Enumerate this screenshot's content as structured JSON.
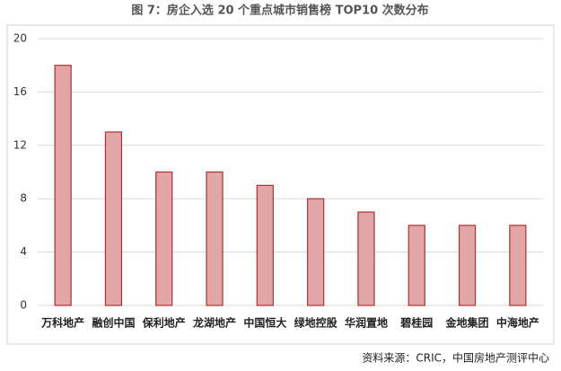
{
  "chart_data": {
    "type": "bar",
    "title": "图 7：房企入选 20 个重点城市销售榜 TOP10 次数分布",
    "categories": [
      "万科地产",
      "融创中国",
      "保利地产",
      "龙湖地产",
      "中国恒大",
      "绿地控股",
      "华润置地",
      "碧桂园",
      "金地集团",
      "中海地产"
    ],
    "values": [
      18,
      13,
      10,
      10,
      9,
      8,
      7,
      6,
      6,
      6
    ],
    "color": "#e3a6a6",
    "edge_color": "#a83232",
    "ylim": [
      0,
      20
    ],
    "yticks": [
      0,
      4,
      8,
      12,
      16,
      20
    ],
    "grid": true,
    "source": "资料来源：CRIC，中国房地产测评中心"
  }
}
